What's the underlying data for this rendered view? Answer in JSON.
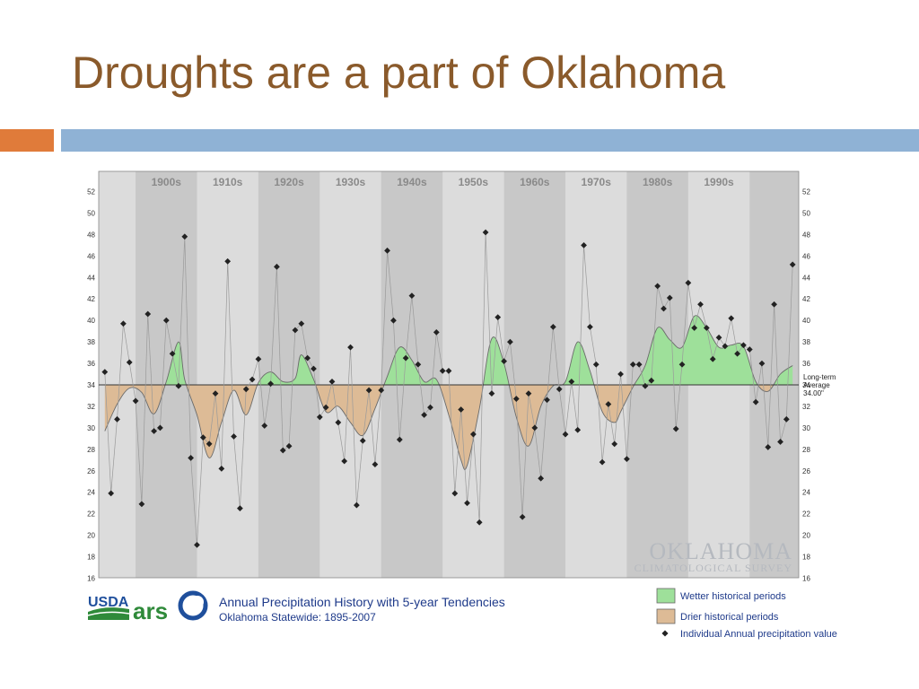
{
  "slide": {
    "title": "Droughts are a part of Oklahoma",
    "colors": {
      "title": "#8a5a2b",
      "accent_orange": "#e07b3a",
      "accent_blue": "#8fb2d5"
    }
  },
  "chart_data": {
    "type": "line",
    "title": "Annual Precipitation History with 5-year Tendencies",
    "subtitle": "Oklahoma Statewide: 1895-2007",
    "ylabel": "",
    "xlabel": "",
    "ylim": [
      16,
      54
    ],
    "xlim": [
      1894,
      2008
    ],
    "y_ticks": [
      16,
      18,
      20,
      22,
      24,
      26,
      28,
      30,
      32,
      34,
      36,
      38,
      40,
      42,
      44,
      46,
      48,
      50,
      52
    ],
    "decades": [
      "1900s",
      "1910s",
      "1920s",
      "1930s",
      "1940s",
      "1950s",
      "1960s",
      "1970s",
      "1980s",
      "1990s"
    ],
    "long_term_average": 34.0,
    "average_label": [
      "Long-term",
      "Average",
      "34.00\""
    ],
    "colors": {
      "wetter": "#9ee09a",
      "drier": "#ddbb96",
      "marker": "#222222",
      "plot_bg": "#dcdcdc",
      "decade_band": "#c8c8c8"
    },
    "series": [
      {
        "name": "Individual Annual precipitation value",
        "style": "marker-line",
        "x": [
          1895,
          1896,
          1897,
          1898,
          1899,
          1900,
          1901,
          1902,
          1903,
          1904,
          1905,
          1906,
          1907,
          1908,
          1909,
          1910,
          1911,
          1912,
          1913,
          1914,
          1915,
          1916,
          1917,
          1918,
          1919,
          1920,
          1921,
          1922,
          1923,
          1924,
          1925,
          1926,
          1927,
          1928,
          1929,
          1930,
          1931,
          1932,
          1933,
          1934,
          1935,
          1936,
          1937,
          1938,
          1939,
          1940,
          1941,
          1942,
          1943,
          1944,
          1945,
          1946,
          1947,
          1948,
          1949,
          1950,
          1951,
          1952,
          1953,
          1954,
          1955,
          1956,
          1957,
          1958,
          1959,
          1960,
          1961,
          1962,
          1963,
          1964,
          1965,
          1966,
          1967,
          1968,
          1969,
          1970,
          1971,
          1972,
          1973,
          1974,
          1975,
          1976,
          1977,
          1978,
          1979,
          1980,
          1981,
          1982,
          1983,
          1984,
          1985,
          1986,
          1987,
          1988,
          1989,
          1990,
          1991,
          1992,
          1993,
          1994,
          1995,
          1996,
          1997,
          1998,
          1999,
          2000,
          2001,
          2002,
          2003,
          2004,
          2005,
          2006,
          2007
        ],
        "values": [
          35.2,
          23.9,
          30.8,
          39.7,
          36.1,
          32.5,
          22.9,
          40.6,
          29.7,
          30.0,
          40.0,
          36.9,
          33.9,
          47.8,
          27.2,
          19.1,
          29.1,
          28.5,
          33.2,
          26.2,
          45.5,
          29.2,
          22.5,
          33.6,
          34.5,
          36.4,
          30.2,
          34.1,
          45.0,
          27.9,
          28.3,
          39.1,
          39.7,
          36.5,
          35.5,
          31.0,
          31.9,
          34.3,
          30.5,
          26.9,
          37.5,
          22.8,
          28.8,
          33.5,
          26.6,
          33.5,
          46.5,
          40.0,
          28.9,
          36.5,
          42.3,
          35.9,
          31.2,
          31.9,
          38.9,
          35.3,
          35.3,
          23.9,
          31.7,
          23.0,
          29.4,
          21.2,
          48.2,
          33.2,
          40.3,
          36.2,
          38.0,
          32.7,
          21.7,
          33.2,
          30.0,
          25.3,
          32.6,
          39.4,
          33.6,
          29.4,
          34.3,
          29.8,
          47.0,
          39.4,
          35.9,
          26.8,
          32.2,
          28.5,
          35.0,
          27.1,
          35.9,
          35.9,
          33.9,
          34.4,
          43.2,
          41.1,
          42.1,
          29.9,
          35.9,
          43.5,
          39.3,
          41.5,
          39.3,
          36.4,
          38.4,
          37.6,
          40.2,
          36.9,
          37.7,
          37.3,
          32.4,
          36.0,
          28.2,
          41.5,
          28.7,
          30.8,
          45.2
        ]
      },
      {
        "name": "5-year tendency",
        "style": "filled-curve",
        "x": [
          1895,
          1897,
          1899,
          1901,
          1903,
          1905,
          1907,
          1908,
          1910,
          1912,
          1914,
          1916,
          1918,
          1920,
          1922,
          1924,
          1926,
          1927,
          1929,
          1931,
          1933,
          1935,
          1937,
          1939,
          1941,
          1943,
          1945,
          1947,
          1949,
          1951,
          1953,
          1954,
          1956,
          1958,
          1960,
          1962,
          1964,
          1966,
          1968,
          1970,
          1972,
          1974,
          1976,
          1978,
          1979,
          1981,
          1983,
          1985,
          1987,
          1989,
          1991,
          1993,
          1995,
          1997,
          1999,
          2001,
          2003,
          2005,
          2007
        ],
        "values": [
          29.7,
          32.2,
          33.7,
          33.3,
          31.3,
          34.3,
          38.0,
          34.5,
          31.2,
          27.2,
          30.5,
          33.5,
          31.2,
          34.2,
          35.2,
          34.3,
          34.6,
          36.8,
          34.5,
          31.5,
          32.0,
          30.5,
          29.3,
          31.8,
          34.8,
          37.5,
          36.3,
          34.3,
          34.5,
          31.2,
          27.0,
          26.5,
          31.8,
          38.3,
          36.0,
          31.0,
          28.3,
          32.0,
          33.9,
          34.3,
          38.0,
          35.3,
          31.5,
          30.5,
          31.5,
          33.8,
          35.8,
          39.3,
          38.2,
          37.5,
          40.4,
          39.3,
          37.5,
          37.7,
          37.6,
          34.3,
          33.4,
          35.0,
          35.8
        ]
      }
    ],
    "legend": [
      {
        "label": "Wetter historical periods",
        "swatch": "wetter"
      },
      {
        "label": "Drier historical periods",
        "swatch": "drier"
      },
      {
        "label": "Individual Annual precipitation value",
        "swatch": "marker"
      }
    ],
    "legend_placement": "bottom-right"
  },
  "logos": {
    "usda": "USDA",
    "ars": "ars",
    "ok_climate_main": "OKLAHOMA",
    "ok_climate_sub": "CLIMATOLOGICAL SURVEY"
  }
}
